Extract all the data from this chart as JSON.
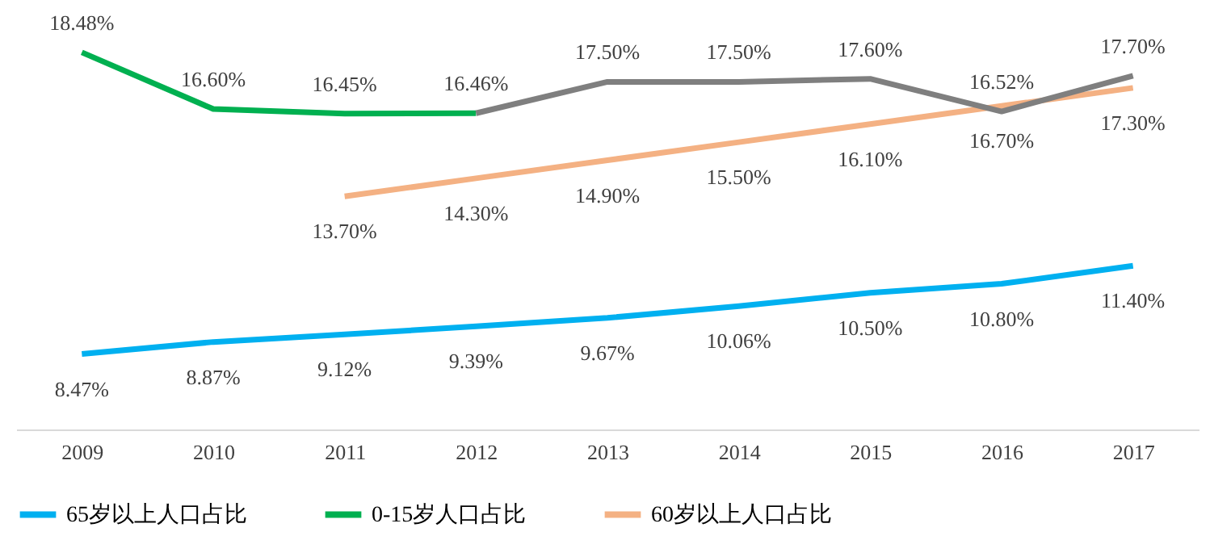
{
  "chart_data": {
    "type": "line",
    "categories": [
      "2009",
      "2010",
      "2011",
      "2012",
      "2013",
      "2014",
      "2015",
      "2016",
      "2017"
    ],
    "series": [
      {
        "name": "65岁以上人口占比",
        "color": "#00b0f0",
        "values": [
          8.47,
          8.87,
          9.12,
          9.39,
          9.67,
          10.06,
          10.5,
          10.8,
          11.4
        ],
        "value_labels": [
          "8.47%",
          "8.87%",
          "9.12%",
          "9.39%",
          "9.67%",
          "10.06%",
          "10.50%",
          "10.80%",
          "11.40%"
        ]
      },
      {
        "name": "0-15岁人口占比",
        "color": "#00b050",
        "values": [
          18.48,
          16.6,
          16.45,
          16.46,
          null,
          null,
          null,
          null,
          null
        ],
        "value_labels": [
          "18.48%",
          "16.60%",
          "16.45%",
          "16.46%",
          null,
          null,
          null,
          null,
          null
        ]
      },
      {
        "name": "60岁以上人口占比",
        "color": "#f4b183",
        "values": [
          null,
          null,
          13.7,
          14.3,
          14.9,
          15.5,
          16.1,
          16.7,
          17.3
        ],
        "value_labels": [
          null,
          null,
          "13.70%",
          "14.30%",
          "14.90%",
          "15.50%",
          "16.10%",
          "16.70%",
          "17.30%"
        ]
      },
      {
        "color": "#7f7f7f",
        "values": [
          null,
          null,
          null,
          16.46,
          17.5,
          17.5,
          17.6,
          16.52,
          17.7
        ],
        "value_labels": [
          null,
          null,
          null,
          null,
          "17.50%",
          "17.50%",
          "17.60%",
          "16.52%",
          "17.70%"
        ]
      }
    ],
    "legend": "bottom",
    "grid": false,
    "marker": "none",
    "line_style": "solid"
  }
}
